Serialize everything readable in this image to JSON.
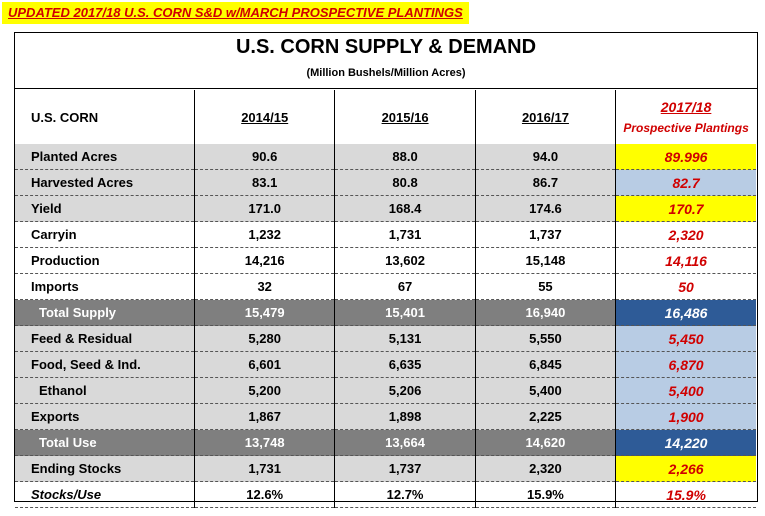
{
  "banner": "UPDATED 2017/18 U.S. CORN S&D w/MARCH PROSPECTIVE PLANTINGS",
  "title": "U.S. CORN SUPPLY & DEMAND",
  "subtitle": "(Million Bushels/Million Acres)",
  "header": {
    "label": "U.S. CORN",
    "cols": [
      "2014/15",
      "2015/16",
      "2016/17"
    ],
    "last_year": "2017/18",
    "last_note": "Prospective Plantings"
  },
  "colors": {
    "yellow": "#ffff00",
    "light_blue": "#b8cce4",
    "navy": "#2e5b97",
    "gray": "#d9d9d9",
    "dark_gray": "#7f7f7f",
    "red": "#d00000"
  },
  "rows": [
    {
      "label": "Planted Acres",
      "v": [
        "90.6",
        "88.0",
        "94.0"
      ],
      "last": "89.996"
    },
    {
      "label": "Harvested Acres",
      "v": [
        "83.1",
        "80.8",
        "86.7"
      ],
      "last": "82.7"
    },
    {
      "label": "Yield",
      "v": [
        "171.0",
        "168.4",
        "174.6"
      ],
      "last": "170.7"
    },
    {
      "label": "Carryin",
      "v": [
        "1,232",
        "1,731",
        "1,737"
      ],
      "last": "2,320"
    },
    {
      "label": "Production",
      "v": [
        "14,216",
        "13,602",
        "15,148"
      ],
      "last": "14,116"
    },
    {
      "label": "Imports",
      "v": [
        "32",
        "67",
        "55"
      ],
      "last": "50"
    },
    {
      "label": "Total Supply",
      "v": [
        "15,479",
        "15,401",
        "16,940"
      ],
      "last": "16,486"
    },
    {
      "label": "Feed & Residual",
      "v": [
        "5,280",
        "5,131",
        "5,550"
      ],
      "last": "5,450"
    },
    {
      "label": "Food, Seed & Ind.",
      "v": [
        "6,601",
        "6,635",
        "6,845"
      ],
      "last": "6,870"
    },
    {
      "label": "Ethanol",
      "v": [
        "5,200",
        "5,206",
        "5,400"
      ],
      "last": "5,400"
    },
    {
      "label": "Exports",
      "v": [
        "1,867",
        "1,898",
        "2,225"
      ],
      "last": "1,900"
    },
    {
      "label": "Total Use",
      "v": [
        "13,748",
        "13,664",
        "14,620"
      ],
      "last": "14,220"
    },
    {
      "label": "Ending Stocks",
      "v": [
        "1,731",
        "1,737",
        "2,320"
      ],
      "last": "2,266"
    },
    {
      "label": "Stocks/Use",
      "v": [
        "12.6%",
        "12.7%",
        "15.9%"
      ],
      "last": "15.9%"
    }
  ]
}
